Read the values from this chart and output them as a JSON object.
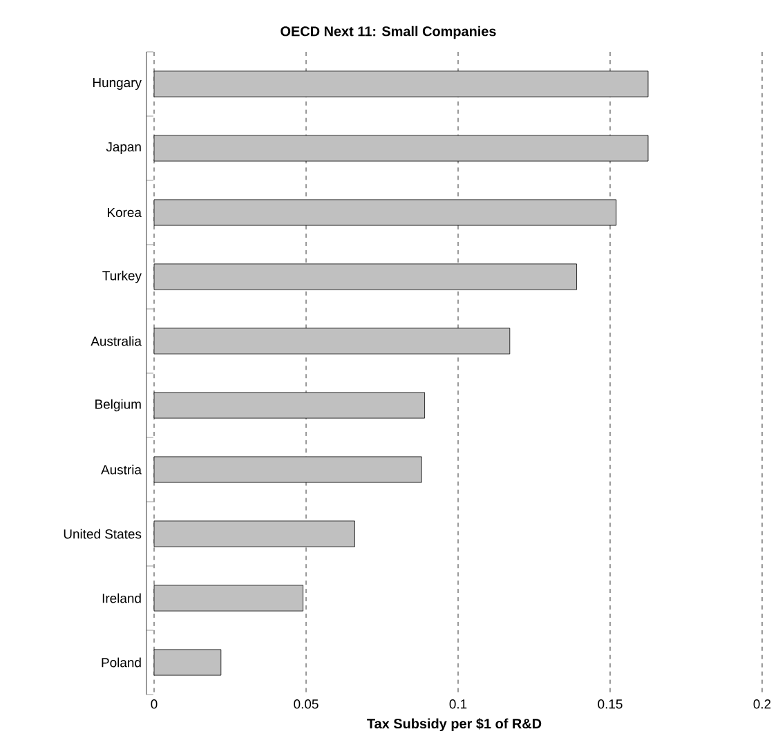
{
  "chart_data": {
    "type": "bar",
    "orientation": "horizontal",
    "title": "OECD Next 11: Small Companies",
    "xlabel": "Tax Subsidy per $1 of R&D",
    "categories": [
      "Hungary",
      "Japan",
      "Korea",
      "Turkey",
      "Australia",
      "Belgium",
      "Austria",
      "United States",
      "Ireland",
      "Poland"
    ],
    "values": [
      0.1625,
      0.1625,
      0.152,
      0.139,
      0.117,
      0.089,
      0.088,
      0.066,
      0.049,
      0.022
    ],
    "color": "#c0c0c0",
    "xlim": [
      -0.0025,
      0.2
    ],
    "xticks": [
      0,
      0.05,
      0.1,
      0.15,
      0.2
    ],
    "grid": "x"
  }
}
